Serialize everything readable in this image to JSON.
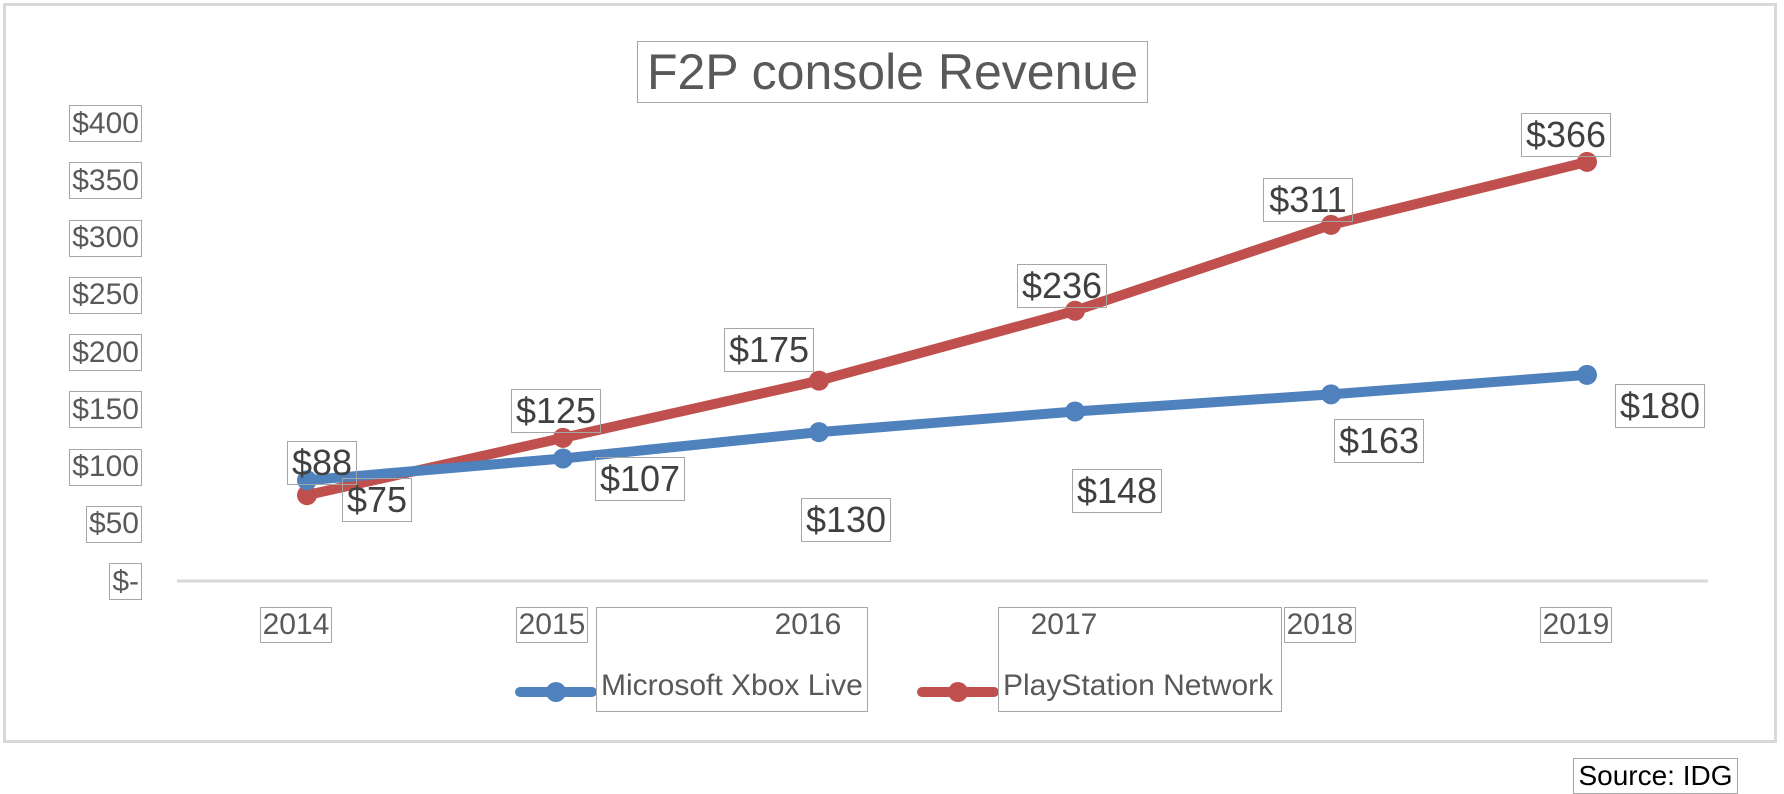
{
  "chart_data": {
    "type": "line",
    "title": "F2P console Revenue",
    "xlabel": "",
    "ylabel": "",
    "categories": [
      "2014",
      "2015",
      "2016",
      "2017",
      "2018",
      "2019"
    ],
    "series": [
      {
        "name": "Microsoft Xbox Live",
        "color": "#4f81bd",
        "values": [
          88,
          107,
          130,
          148,
          163,
          180
        ],
        "labels": [
          "$88",
          "$107",
          "$130",
          "$148",
          "$163",
          "$180"
        ]
      },
      {
        "name": "PlayStation Network",
        "color": "#c0504d",
        "values": [
          75,
          125,
          175,
          236,
          311,
          366
        ],
        "labels": [
          "$75",
          "$125",
          "$175",
          "$236",
          "$311",
          "$366"
        ]
      }
    ],
    "ylim": [
      0,
      400
    ],
    "yticks": [
      0,
      50,
      100,
      150,
      200,
      250,
      300,
      350,
      400
    ],
    "ytick_labels": [
      "$-",
      "$50",
      "$100",
      "$150",
      "$200",
      "$250",
      "$300",
      "$350",
      "$400"
    ],
    "grid": false,
    "legend_position": "bottom",
    "source": "Source: IDG"
  }
}
